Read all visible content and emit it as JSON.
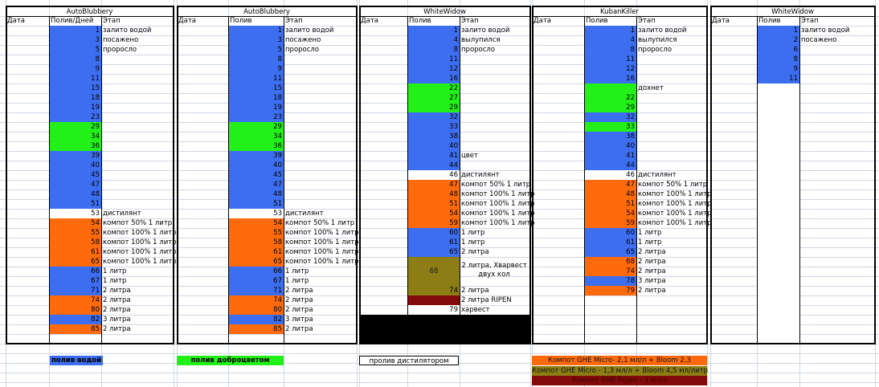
{
  "colors": {
    "blue": "#3d6ef0",
    "green": "#22f018",
    "orange": "#ff6a0c",
    "white": "#ffffff",
    "olive": "#8c7e14",
    "darkred": "#820a0a",
    "black": "#000000"
  },
  "header": {
    "date": "Дата",
    "stage": "Этап"
  },
  "panels": [
    {
      "title": "AutoBlubbery",
      "watering_header": "Полив/Дней",
      "rows": [
        {
          "n": "1",
          "c": "blue",
          "s": "залито водой"
        },
        {
          "n": "3",
          "c": "blue",
          "s": "посажено"
        },
        {
          "n": "5",
          "c": "blue",
          "s": "проросло"
        },
        {
          "n": "8",
          "c": "blue",
          "s": ""
        },
        {
          "n": "9",
          "c": "blue",
          "s": ""
        },
        {
          "n": "11",
          "c": "blue",
          "s": ""
        },
        {
          "n": "15",
          "c": "blue",
          "s": ""
        },
        {
          "n": "18",
          "c": "blue",
          "s": ""
        },
        {
          "n": "19",
          "c": "blue",
          "s": ""
        },
        {
          "n": "23",
          "c": "blue",
          "s": ""
        },
        {
          "n": "29",
          "c": "green",
          "s": ""
        },
        {
          "n": "34",
          "c": "green",
          "s": ""
        },
        {
          "n": "36",
          "c": "green",
          "s": ""
        },
        {
          "n": "39",
          "c": "blue",
          "s": ""
        },
        {
          "n": "40",
          "c": "blue",
          "s": ""
        },
        {
          "n": "45",
          "c": "blue",
          "s": ""
        },
        {
          "n": "47",
          "c": "blue",
          "s": ""
        },
        {
          "n": "48",
          "c": "blue",
          "s": ""
        },
        {
          "n": "51",
          "c": "blue",
          "s": ""
        },
        {
          "n": "53",
          "c": "white",
          "s": "дистилянт"
        },
        {
          "n": "54",
          "c": "orange",
          "s": "компот 50% 1 литр"
        },
        {
          "n": "55",
          "c": "orange",
          "s": "компот 100% 1 литр"
        },
        {
          "n": "58",
          "c": "orange",
          "s": "компот 100% 1 литр"
        },
        {
          "n": "61",
          "c": "orange",
          "s": "компот 100% 1 литр"
        },
        {
          "n": "65",
          "c": "orange",
          "s": "компот 100% 1 литр"
        },
        {
          "n": "66",
          "c": "blue",
          "s": "1 литр"
        },
        {
          "n": "67",
          "c": "blue",
          "s": "1 литр"
        },
        {
          "n": "71",
          "c": "blue",
          "s": "2 литра"
        },
        {
          "n": "74",
          "c": "orange",
          "s": "2 литра"
        },
        {
          "n": "80",
          "c": "orange",
          "s": "2 литра"
        },
        {
          "n": "82",
          "c": "blue",
          "s": "3 литра"
        },
        {
          "n": "85",
          "c": "orange",
          "s": "2 литра"
        }
      ]
    },
    {
      "title": "AutoBlubbery",
      "watering_header": "Полив",
      "rows": [
        {
          "n": "1",
          "c": "blue",
          "s": "залито водой"
        },
        {
          "n": "3",
          "c": "blue",
          "s": "посажено"
        },
        {
          "n": "5",
          "c": "blue",
          "s": "проросло"
        },
        {
          "n": "8",
          "c": "blue",
          "s": ""
        },
        {
          "n": "9",
          "c": "blue",
          "s": ""
        },
        {
          "n": "11",
          "c": "blue",
          "s": ""
        },
        {
          "n": "15",
          "c": "blue",
          "s": ""
        },
        {
          "n": "18",
          "c": "blue",
          "s": ""
        },
        {
          "n": "19",
          "c": "blue",
          "s": ""
        },
        {
          "n": "23",
          "c": "blue",
          "s": ""
        },
        {
          "n": "29",
          "c": "green",
          "s": ""
        },
        {
          "n": "34",
          "c": "green",
          "s": ""
        },
        {
          "n": "36",
          "c": "green",
          "s": ""
        },
        {
          "n": "39",
          "c": "blue",
          "s": ""
        },
        {
          "n": "40",
          "c": "blue",
          "s": ""
        },
        {
          "n": "45",
          "c": "blue",
          "s": ""
        },
        {
          "n": "47",
          "c": "blue",
          "s": ""
        },
        {
          "n": "48",
          "c": "blue",
          "s": ""
        },
        {
          "n": "51",
          "c": "blue",
          "s": ""
        },
        {
          "n": "53",
          "c": "white",
          "s": "дистилянт"
        },
        {
          "n": "54",
          "c": "orange",
          "s": "компот 50% 1 литр"
        },
        {
          "n": "55",
          "c": "orange",
          "s": "компот 100% 1 литр"
        },
        {
          "n": "58",
          "c": "orange",
          "s": "компот 100% 1 литр"
        },
        {
          "n": "61",
          "c": "orange",
          "s": "компот 100% 1 литр"
        },
        {
          "n": "65",
          "c": "orange",
          "s": "компот 100% 1 литр"
        },
        {
          "n": "66",
          "c": "blue",
          "s": "1 литр"
        },
        {
          "n": "67",
          "c": "blue",
          "s": "1 литр"
        },
        {
          "n": "71",
          "c": "blue",
          "s": "2 литра"
        },
        {
          "n": "74",
          "c": "orange",
          "s": "2 литра"
        },
        {
          "n": "80",
          "c": "orange",
          "s": "2 литра"
        },
        {
          "n": "82",
          "c": "blue",
          "s": "3 литра"
        },
        {
          "n": "85",
          "c": "orange",
          "s": "2 литра"
        }
      ]
    },
    {
      "title": "WhiteWidow",
      "watering_header": "Полив",
      "rows": [
        {
          "n": "1",
          "c": "blue",
          "s": "залито водой"
        },
        {
          "n": "4",
          "c": "blue",
          "s": "вылупился"
        },
        {
          "n": "8",
          "c": "blue",
          "s": "проросло"
        },
        {
          "n": "11",
          "c": "blue",
          "s": ""
        },
        {
          "n": "12",
          "c": "blue",
          "s": ""
        },
        {
          "n": "16",
          "c": "blue",
          "s": ""
        },
        {
          "n": "22",
          "c": "green",
          "s": ""
        },
        {
          "n": "27",
          "c": "green",
          "s": ""
        },
        {
          "n": "29",
          "c": "green",
          "s": ""
        },
        {
          "n": "32",
          "c": "blue",
          "s": ""
        },
        {
          "n": "33",
          "c": "blue",
          "s": ""
        },
        {
          "n": "38",
          "c": "blue",
          "s": ""
        },
        {
          "n": "40",
          "c": "blue",
          "s": ""
        },
        {
          "n": "41",
          "c": "blue",
          "s": "цвет"
        },
        {
          "n": "44",
          "c": "blue",
          "s": ""
        },
        {
          "n": "46",
          "c": "white",
          "s": "дистилянт"
        },
        {
          "n": "47",
          "c": "orange",
          "s": "компот 50% 1 литр"
        },
        {
          "n": "48",
          "c": "orange",
          "s": "компот 100% 1 литр"
        },
        {
          "n": "51",
          "c": "orange",
          "s": "компот 100% 1 литр"
        },
        {
          "n": "54",
          "c": "orange",
          "s": "компот 100% 1 литр"
        },
        {
          "n": "59",
          "c": "orange",
          "s": "компот 100% 1 литр"
        },
        {
          "n": "60",
          "c": "blue",
          "s": "1 литр"
        },
        {
          "n": "61",
          "c": "blue",
          "s": "1 литр"
        },
        {
          "n": "65",
          "c": "blue",
          "s": "2 литра"
        },
        {
          "n": "68",
          "c": "olive",
          "s": "2 литра, Хварвест двух кол",
          "span": 3
        },
        {
          "n": "74",
          "c": "olive",
          "s": "2 литра"
        },
        {
          "n": "",
          "c": "darkred",
          "s": "2 литра RIPEN"
        },
        {
          "n": "79",
          "c": "white",
          "s": "харвест"
        }
      ]
    },
    {
      "title": "KubanKiller",
      "watering_header": "Полив",
      "rows": [
        {
          "n": "1",
          "c": "blue",
          "s": "залито водой"
        },
        {
          "n": "4",
          "c": "blue",
          "s": "вылупился"
        },
        {
          "n": "8",
          "c": "blue",
          "s": "проросло"
        },
        {
          "n": "11",
          "c": "blue",
          "s": ""
        },
        {
          "n": "12",
          "c": "blue",
          "s": ""
        },
        {
          "n": "16",
          "c": "blue",
          "s": ""
        },
        {
          "n": "",
          "c": "green",
          "s": "дохнет"
        },
        {
          "n": "22",
          "c": "green",
          "s": ""
        },
        {
          "n": "29",
          "c": "green",
          "s": ""
        },
        {
          "n": "32",
          "c": "blue",
          "s": ""
        },
        {
          "n": "33",
          "c": "green",
          "s": ""
        },
        {
          "n": "38",
          "c": "blue",
          "s": ""
        },
        {
          "n": "40",
          "c": "blue",
          "s": ""
        },
        {
          "n": "41",
          "c": "blue",
          "s": ""
        },
        {
          "n": "44",
          "c": "blue",
          "s": ""
        },
        {
          "n": "46",
          "c": "white",
          "s": "дистилянт"
        },
        {
          "n": "47",
          "c": "orange",
          "s": "компот 50% 1 литр"
        },
        {
          "n": "48",
          "c": "orange",
          "s": "компот 100% 1 литр"
        },
        {
          "n": "51",
          "c": "orange",
          "s": "компот 100% 1 литр"
        },
        {
          "n": "54",
          "c": "orange",
          "s": "компот 100% 1 литр"
        },
        {
          "n": "59",
          "c": "orange",
          "s": "компот 100% 1 литр"
        },
        {
          "n": "60",
          "c": "blue",
          "s": "1 литр"
        },
        {
          "n": "61",
          "c": "blue",
          "s": "1 литр"
        },
        {
          "n": "65",
          "c": "blue",
          "s": "2 литра"
        },
        {
          "n": "68",
          "c": "orange",
          "s": "2 литра"
        },
        {
          "n": "74",
          "c": "orange",
          "s": "2 литра"
        },
        {
          "n": "78",
          "c": "blue",
          "s": "3 литра"
        },
        {
          "n": "79",
          "c": "orange",
          "s": "2 литра"
        }
      ]
    },
    {
      "title": "WhiteWidow",
      "watering_header": "Полив",
      "rows": [
        {
          "n": "1",
          "c": "blue",
          "s": "залито водой"
        },
        {
          "n": "2",
          "c": "blue",
          "s": "посажено"
        },
        {
          "n": "6",
          "c": "blue",
          "s": ""
        },
        {
          "n": "8",
          "c": "blue",
          "s": ""
        },
        {
          "n": "9",
          "c": "blue",
          "s": ""
        },
        {
          "n": "11",
          "c": "blue",
          "s": ""
        }
      ]
    }
  ],
  "legend": {
    "water": "полив водой",
    "fertilizer": "полив доброцветом",
    "distilled": "пролив дистилятором",
    "ghe1": "Компот GHE Micro-  2,1 мл/л   + Bloom 2,3",
    "ghe2": "Компот GHE Micro - 1,3 мл/л + Bloom 4,5 мл/литр",
    "ghe3": "Компот GHE Ripen - 3 мл/л"
  }
}
